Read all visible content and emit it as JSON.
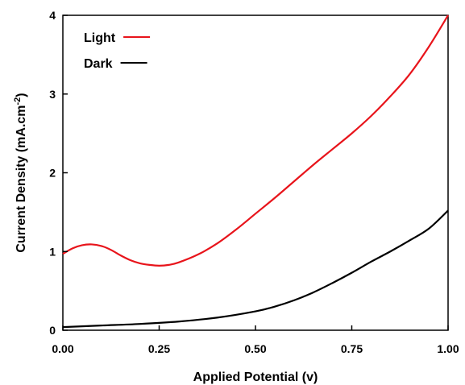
{
  "chart_data": {
    "type": "line",
    "title": "",
    "xlabel": "Applied Potential (v)",
    "ylabel": {
      "base": "Current Density (mA.cm",
      "sup": "-2",
      "close": ")"
    },
    "xlim": [
      0,
      1
    ],
    "ylim": [
      0,
      4
    ],
    "xticks": [
      0,
      0.25,
      0.5,
      0.75,
      1
    ],
    "xtick_labels": [
      "0.00",
      "0.25",
      "0.50",
      "0.75",
      "1.00"
    ],
    "yticks": [
      0,
      1,
      2,
      3,
      4
    ],
    "ytick_labels": [
      "0",
      "1",
      "2",
      "3",
      "4"
    ],
    "grid": false,
    "legend_position": "top-left",
    "series": [
      {
        "name": "Light",
        "color": "#e8141b",
        "x": [
          0,
          0.025,
          0.05,
          0.075,
          0.1,
          0.125,
          0.15,
          0.175,
          0.2,
          0.225,
          0.25,
          0.275,
          0.3,
          0.35,
          0.4,
          0.45,
          0.5,
          0.55,
          0.6,
          0.65,
          0.7,
          0.75,
          0.8,
          0.85,
          0.9,
          0.95,
          1.0
        ],
        "y": [
          0.97,
          1.04,
          1.08,
          1.09,
          1.07,
          1.02,
          0.95,
          0.89,
          0.85,
          0.83,
          0.82,
          0.83,
          0.86,
          0.96,
          1.1,
          1.28,
          1.48,
          1.68,
          1.89,
          2.1,
          2.3,
          2.5,
          2.72,
          2.97,
          3.25,
          3.6,
          4.0
        ]
      },
      {
        "name": "Dark",
        "color": "#000000",
        "x": [
          0,
          0.1,
          0.2,
          0.3,
          0.4,
          0.5,
          0.55,
          0.6,
          0.65,
          0.7,
          0.75,
          0.8,
          0.85,
          0.9,
          0.95,
          1.0
        ],
        "y": [
          0.04,
          0.06,
          0.08,
          0.11,
          0.16,
          0.24,
          0.3,
          0.38,
          0.48,
          0.6,
          0.73,
          0.87,
          1.0,
          1.14,
          1.29,
          1.52
        ]
      }
    ]
  }
}
